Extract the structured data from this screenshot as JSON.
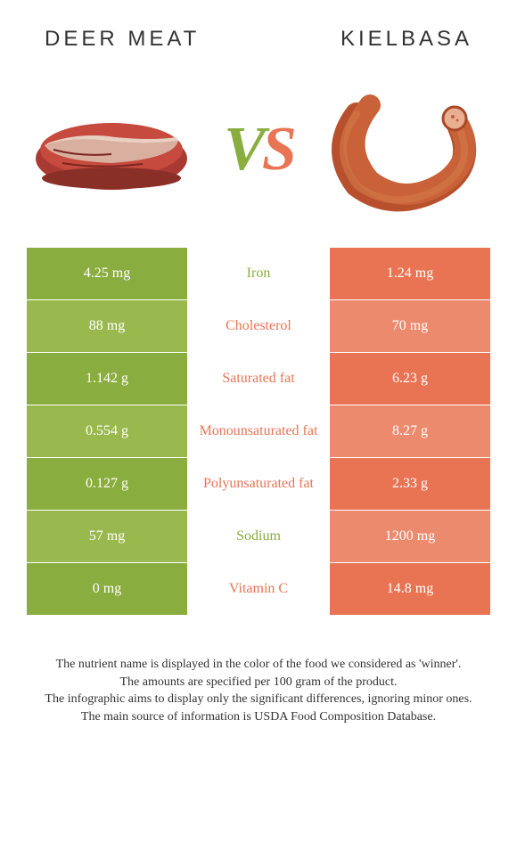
{
  "header": {
    "left": "Deer meat",
    "right": "Kielbasa"
  },
  "vs": {
    "v": "V",
    "s": "S"
  },
  "colors": {
    "left": "#8aad3f",
    "left_alt": "#99b94f",
    "right": "#e87454",
    "right_alt": "#ec8a6e"
  },
  "rows": [
    {
      "label": "Iron",
      "left": "4.25 mg",
      "right": "1.24 mg",
      "winner": "left"
    },
    {
      "label": "Cholesterol",
      "left": "88 mg",
      "right": "70 mg",
      "winner": "right"
    },
    {
      "label": "Saturated fat",
      "left": "1.142 g",
      "right": "6.23 g",
      "winner": "right"
    },
    {
      "label": "Monounsaturated fat",
      "left": "0.554 g",
      "right": "8.27 g",
      "winner": "right"
    },
    {
      "label": "Polyunsaturated fat",
      "left": "0.127 g",
      "right": "2.33 g",
      "winner": "right"
    },
    {
      "label": "Sodium",
      "left": "57 mg",
      "right": "1200 mg",
      "winner": "left"
    },
    {
      "label": "Vitamin C",
      "left": "0 mg",
      "right": "14.8 mg",
      "winner": "right"
    }
  ],
  "footer": {
    "l1": "The nutrient name is displayed in the color of the food we considered as 'winner'.",
    "l2": "The amounts are specified per 100 gram of the product.",
    "l3": "The infographic aims to display only the significant differences, ignoring minor ones.",
    "l4": "The main source of information is USDA Food Composition Database."
  }
}
